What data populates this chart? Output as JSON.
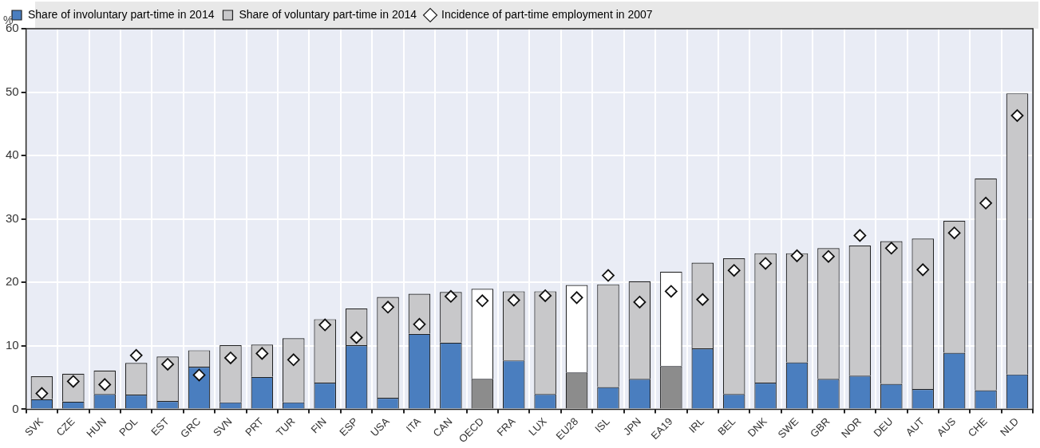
{
  "chart_data": {
    "type": "bar",
    "stacked": true,
    "ylabel": "%",
    "categories": [
      "SVK",
      "CZE",
      "HUN",
      "POL",
      "EST",
      "GRC",
      "SVN",
      "PRT",
      "TUR",
      "FIN",
      "ESP",
      "USA",
      "ITA",
      "CAN",
      "OECD",
      "FRA",
      "LUX",
      "EU28",
      "ISL",
      "JPN",
      "EA19",
      "IRL",
      "BEL",
      "DNK",
      "SWE",
      "GBR",
      "NOR",
      "DEU",
      "AUT",
      "AUS",
      "CHE",
      "NLD"
    ],
    "series": [
      {
        "name": "Share of involuntary part-time in 2014",
        "color": "#4a7ebf",
        "colors": [
          "#4a7ebf",
          "#4a7ebf",
          "#4a7ebf",
          "#4a7ebf",
          "#4a7ebf",
          "#4a7ebf",
          "#4a7ebf",
          "#4a7ebf",
          "#4a7ebf",
          "#4a7ebf",
          "#4a7ebf",
          "#4a7ebf",
          "#4a7ebf",
          "#4a7ebf",
          "#8c8c8c",
          "#4a7ebf",
          "#4a7ebf",
          "#8c8c8c",
          "#4a7ebf",
          "#4a7ebf",
          "#8c8c8c",
          "#4a7ebf",
          "#4a7ebf",
          "#4a7ebf",
          "#4a7ebf",
          "#4a7ebf",
          "#4a7ebf",
          "#4a7ebf",
          "#4a7ebf",
          "#4a7ebf",
          "#4a7ebf",
          "#4a7ebf"
        ],
        "values": [
          1.6,
          1.2,
          2.4,
          2.3,
          1.3,
          6.7,
          1.1,
          5.1,
          1.1,
          4.2,
          10.1,
          1.8,
          11.9,
          10.5,
          4.8,
          7.7,
          2.4,
          5.8,
          3.5,
          4.8,
          6.8,
          9.6,
          2.4,
          4.2,
          7.4,
          4.8,
          5.3,
          4.0,
          3.2,
          8.9,
          3.0,
          5.5
        ]
      },
      {
        "name": "Share of voluntary part-time in 2014",
        "color": "#c8c8ca",
        "colors": [
          "#c8c8ca",
          "#c8c8ca",
          "#c8c8ca",
          "#c8c8ca",
          "#c8c8ca",
          "#c8c8ca",
          "#c8c8ca",
          "#c8c8ca",
          "#c8c8ca",
          "#c8c8ca",
          "#c8c8ca",
          "#c8c8ca",
          "#c8c8ca",
          "#c8c8ca",
          "#ffffff",
          "#c8c8ca",
          "#c8c8ca",
          "#ffffff",
          "#c8c8ca",
          "#c8c8ca",
          "#ffffff",
          "#c8c8ca",
          "#c8c8ca",
          "#c8c8ca",
          "#c8c8ca",
          "#c8c8ca",
          "#c8c8ca",
          "#c8c8ca",
          "#c8c8ca",
          "#c8c8ca",
          "#c8c8ca",
          "#c8c8ca"
        ],
        "values": [
          3.6,
          4.4,
          3.7,
          5.0,
          7.0,
          2.6,
          9.0,
          5.1,
          10.1,
          10.0,
          5.8,
          15.9,
          6.3,
          8.0,
          14.2,
          10.9,
          16.2,
          13.8,
          16.2,
          15.4,
          14.9,
          13.5,
          21.4,
          20.4,
          17.2,
          20.6,
          20.5,
          22.5,
          23.7,
          20.8,
          33.4,
          44.3
        ]
      },
      {
        "name": "Incidence of part-time employment in 2007",
        "type": "scatter",
        "marker": "diamond",
        "color": "#ffffff",
        "values": [
          2.5,
          4.4,
          3.9,
          8.5,
          7.1,
          5.4,
          8.1,
          8.8,
          7.8,
          13.3,
          11.3,
          16.1,
          13.4,
          17.8,
          17.1,
          17.2,
          17.9,
          17.6,
          21.1,
          16.9,
          18.6,
          17.3,
          21.9,
          23.0,
          24.2,
          24.1,
          27.4,
          25.4,
          22.0,
          27.8,
          32.5,
          46.3
        ]
      }
    ],
    "ylim": [
      0,
      60
    ],
    "yticks": [
      0,
      10,
      20,
      30,
      40,
      50,
      60
    ],
    "grid": true,
    "legend": "top"
  }
}
